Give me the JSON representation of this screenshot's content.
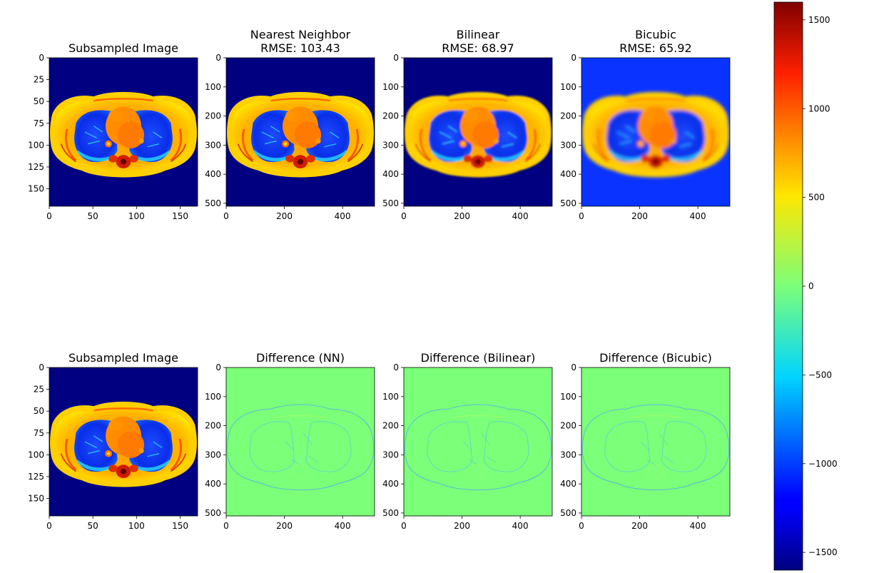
{
  "figure": {
    "panels": [
      {
        "id": "p1",
        "row": 0,
        "col": 0,
        "title_lines": [
          "Subsampled Image"
        ],
        "kind": "ct",
        "style": "sub",
        "xlim": [
          0,
          170
        ],
        "ylim": [
          170,
          0
        ],
        "xticks": [
          0,
          50,
          100,
          150
        ],
        "yticks": [
          0,
          25,
          50,
          75,
          100,
          125,
          150
        ]
      },
      {
        "id": "p2",
        "row": 0,
        "col": 1,
        "title_lines": [
          "Nearest Neighbor",
          "RMSE: 103.43"
        ],
        "kind": "ct",
        "style": "nn",
        "xlim": [
          0,
          510
        ],
        "ylim": [
          510,
          0
        ],
        "xticks": [
          0,
          200,
          400
        ],
        "yticks": [
          0,
          100,
          200,
          300,
          400,
          500
        ]
      },
      {
        "id": "p3",
        "row": 0,
        "col": 2,
        "title_lines": [
          "Bilinear",
          "RMSE: 68.97"
        ],
        "kind": "ct",
        "style": "bl",
        "xlim": [
          0,
          510
        ],
        "ylim": [
          510,
          0
        ],
        "xticks": [
          0,
          200,
          400
        ],
        "yticks": [
          0,
          100,
          200,
          300,
          400,
          500
        ]
      },
      {
        "id": "p4",
        "row": 0,
        "col": 3,
        "title_lines": [
          "Bicubic",
          "RMSE: 65.92"
        ],
        "kind": "ct",
        "style": "bc",
        "xlim": [
          0,
          510
        ],
        "ylim": [
          510,
          0
        ],
        "xticks": [
          0,
          200,
          400
        ],
        "yticks": [
          0,
          100,
          200,
          300,
          400,
          500
        ]
      },
      {
        "id": "p5",
        "row": 1,
        "col": 0,
        "title_lines": [
          "Subsampled Image"
        ],
        "kind": "ct",
        "style": "sub",
        "xlim": [
          0,
          170
        ],
        "ylim": [
          170,
          0
        ],
        "xticks": [
          0,
          50,
          100,
          150
        ],
        "yticks": [
          0,
          25,
          50,
          75,
          100,
          125,
          150
        ]
      },
      {
        "id": "p6",
        "row": 1,
        "col": 1,
        "title_lines": [
          "Difference (NN)"
        ],
        "kind": "diff",
        "xlim": [
          0,
          510
        ],
        "ylim": [
          510,
          0
        ],
        "xticks": [
          0,
          200,
          400
        ],
        "yticks": [
          0,
          100,
          200,
          300,
          400,
          500
        ]
      },
      {
        "id": "p7",
        "row": 1,
        "col": 2,
        "title_lines": [
          "Difference (Bilinear)"
        ],
        "kind": "diff",
        "xlim": [
          0,
          510
        ],
        "ylim": [
          510,
          0
        ],
        "xticks": [
          0,
          200,
          400
        ],
        "yticks": [
          0,
          100,
          200,
          300,
          400,
          500
        ]
      },
      {
        "id": "p8",
        "row": 1,
        "col": 3,
        "title_lines": [
          "Difference (Bicubic)"
        ],
        "kind": "diff",
        "xlim": [
          0,
          510
        ],
        "ylim": [
          510,
          0
        ],
        "xticks": [
          0,
          200,
          400
        ],
        "yticks": [
          0,
          100,
          200,
          300,
          400,
          500
        ]
      }
    ]
  },
  "chart_data": {
    "type": "heatmap",
    "colormap": "jet",
    "colorbar": {
      "range": [
        -1600,
        1600
      ],
      "ticks": [
        -1500,
        -1000,
        -500,
        0,
        500,
        1000,
        1500
      ]
    },
    "panels": [
      {
        "title": "Subsampled Image",
        "x_range": [
          0,
          170
        ],
        "y_range": [
          0,
          170
        ]
      },
      {
        "title": "Nearest Neighbor RMSE: 103.43",
        "rmse": 103.43,
        "x_range": [
          0,
          510
        ],
        "y_range": [
          0,
          510
        ]
      },
      {
        "title": "Bilinear RMSE: 68.97",
        "rmse": 68.97,
        "x_range": [
          0,
          510
        ],
        "y_range": [
          0,
          510
        ]
      },
      {
        "title": "Bicubic RMSE: 65.92",
        "rmse": 65.92,
        "x_range": [
          0,
          510
        ],
        "y_range": [
          0,
          510
        ]
      },
      {
        "title": "Subsampled Image",
        "x_range": [
          0,
          170
        ],
        "y_range": [
          0,
          170
        ]
      },
      {
        "title": "Difference (NN)",
        "x_range": [
          0,
          510
        ],
        "y_range": [
          0,
          510
        ]
      },
      {
        "title": "Difference (Bilinear)",
        "x_range": [
          0,
          510
        ],
        "y_range": [
          0,
          510
        ]
      },
      {
        "title": "Difference (Bicubic)",
        "x_range": [
          0,
          510
        ],
        "y_range": [
          0,
          510
        ]
      }
    ],
    "grid": false
  },
  "colors": {
    "jet_dark_blue": "#000080",
    "jet_blue": "#0040ff",
    "jet_green": "#7cff79",
    "jet_orange": "#ff8c00",
    "jet_dark_red": "#800000"
  }
}
